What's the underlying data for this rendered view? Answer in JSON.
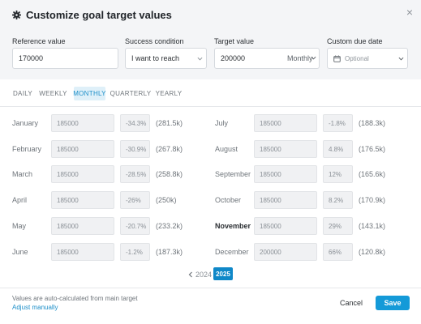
{
  "header": {
    "title": "Customize goal target values",
    "close_label": "×"
  },
  "fields": {
    "reference": {
      "label": "Reference value",
      "value": "170000"
    },
    "condition": {
      "label": "Success condition",
      "value": "I want to reach"
    },
    "target": {
      "label": "Target value",
      "value": "200000",
      "period": "Monthly"
    },
    "due": {
      "label": "Custom due date",
      "placeholder": "Optional"
    }
  },
  "tabs": [
    {
      "label": "DAILY",
      "active": false
    },
    {
      "label": "WEEKLY",
      "active": false
    },
    {
      "label": "MONTHLY",
      "active": true
    },
    {
      "label": "QUARTERLY",
      "active": false
    },
    {
      "label": "YEARLY",
      "active": false
    }
  ],
  "months_left": [
    {
      "name": "January",
      "value": "185000",
      "pct": "-34.3%",
      "abs": "(281.5k)"
    },
    {
      "name": "February",
      "value": "185000",
      "pct": "-30.9%",
      "abs": "(267.8k)"
    },
    {
      "name": "March",
      "value": "185000",
      "pct": "-28.5%",
      "abs": "(258.8k)"
    },
    {
      "name": "April",
      "value": "185000",
      "pct": "-26%",
      "abs": "(250k)"
    },
    {
      "name": "May",
      "value": "185000",
      "pct": "-20.7%",
      "abs": "(233.2k)"
    },
    {
      "name": "June",
      "value": "185000",
      "pct": "-1.2%",
      "abs": "(187.3k)"
    }
  ],
  "months_right": [
    {
      "name": "July",
      "value": "185000",
      "pct": "-1.8%",
      "abs": "(188.3k)"
    },
    {
      "name": "August",
      "value": "185000",
      "pct": "4.8%",
      "abs": "(176.5k)"
    },
    {
      "name": "September",
      "value": "185000",
      "pct": "12%",
      "abs": "(165.6k)"
    },
    {
      "name": "October",
      "value": "185000",
      "pct": "8.2%",
      "abs": "(170.9k)"
    },
    {
      "name": "November",
      "value": "185000",
      "pct": "29%",
      "abs": "(143.1k)"
    },
    {
      "name": "December",
      "value": "200000",
      "pct": "66%",
      "abs": "(120.8k)"
    }
  ],
  "years": {
    "prev": "2024",
    "current": "2025"
  },
  "footer": {
    "note": "Values are auto-calculated from main target",
    "adjust": "Adjust manually",
    "cancel": "Cancel",
    "save": "Save"
  },
  "icons": {
    "gear": "gear-icon",
    "calendar": "calendar-icon",
    "chevron": "chevron-down-icon",
    "close": "close-icon",
    "prev": "chevron-left-icon"
  },
  "colors": {
    "accent": "#149ad8",
    "active_tab_bg": "#dff0f9",
    "year_active": "#0f88c8"
  }
}
